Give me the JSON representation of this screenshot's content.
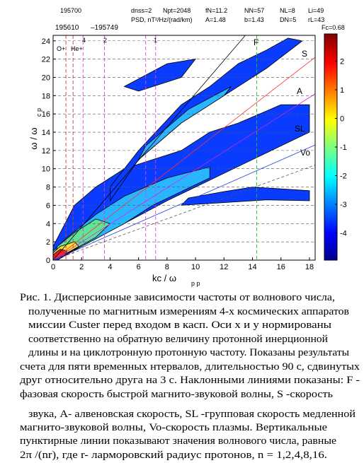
{
  "figure": {
    "header_top": [
      "195700",
      "dnss=2",
      "Npt=2048",
      "fN=11.2",
      "NN=57",
      "NL=8",
      "Li=49"
    ],
    "header_bottom": [
      "195610",
      "–195749",
      "PSD, nT²/Hz/(rad/km)",
      "A=1.48",
      "b=1.43",
      "DN=5",
      "rL=43",
      "Fc=0.68"
    ],
    "y_label": "ω / ω",
    "y_label_sub": "c p",
    "x_label": "kc / ω",
    "x_label_sub": "p p",
    "xlim": [
      0,
      18.4
    ],
    "ylim": [
      0,
      24.6
    ],
    "xticks": [
      0,
      2,
      4,
      6,
      8,
      10,
      12,
      14,
      16,
      18
    ],
    "yticks": [
      0,
      2,
      4,
      6,
      8,
      10,
      12,
      14,
      16,
      18,
      20,
      22,
      24
    ],
    "clim": [
      -4.95,
      2.95
    ],
    "colorbar_ticks": [
      -4,
      -3,
      -2,
      -1,
      0,
      1,
      2
    ],
    "line_labels": [
      "F",
      "S",
      "A",
      "SL",
      "Vo"
    ],
    "ion_labels": [
      "O+",
      "He+"
    ],
    "harmonic_labels": [
      "4",
      "2",
      "1"
    ]
  },
  "caption": [
    "Рис. 1. Дисперсионные зависимости частоты от волнового числа,",
    "полученные по магнитным измерениям 4-х космических аппаратов",
    "миссии Custer  перед входом в касп. Оси x и y  нормированы",
    "соответственно на обратную величину протонной инерционной",
    "длины и на  циклотронную протонную частоту. Показаны результаты",
    "счета для пяти временных нтервалов, длительностью 90 с, сдвинутых",
    "друг относительно друга на 3 с. Наклонными линиями показаны: F -",
    "фазовая скорость быстрой магнито-звуковой волны, S -скорость",
    "звука, A- алвеновская скорость, SL -групповая скорость медленной",
    "магнито-звуковой волны, Vo-скорость плазмы. Вертикальные",
    "пунктирные линии показывают  значения волнового числа, равные",
    "2π /(nr), где r- ларморовский радиус протонов, n = 1,2,4,8,16."
  ]
}
